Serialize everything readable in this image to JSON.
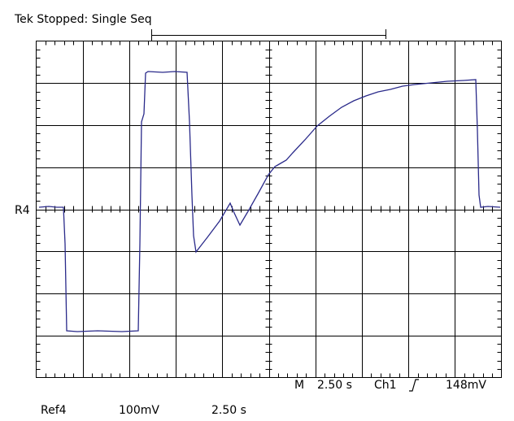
{
  "header": {
    "title": "Tek Stopped: Single Seq"
  },
  "screen": {
    "ref_marker": "R4"
  },
  "status": {
    "timebase": "M",
    "timebase_value": "2.50 s",
    "trigger_channel": "Ch1",
    "trigger_level": "148mV"
  },
  "footer": {
    "reference": "Ref4",
    "volts_per_div": "100mV",
    "time_per_div": "2.50 s"
  }
}
